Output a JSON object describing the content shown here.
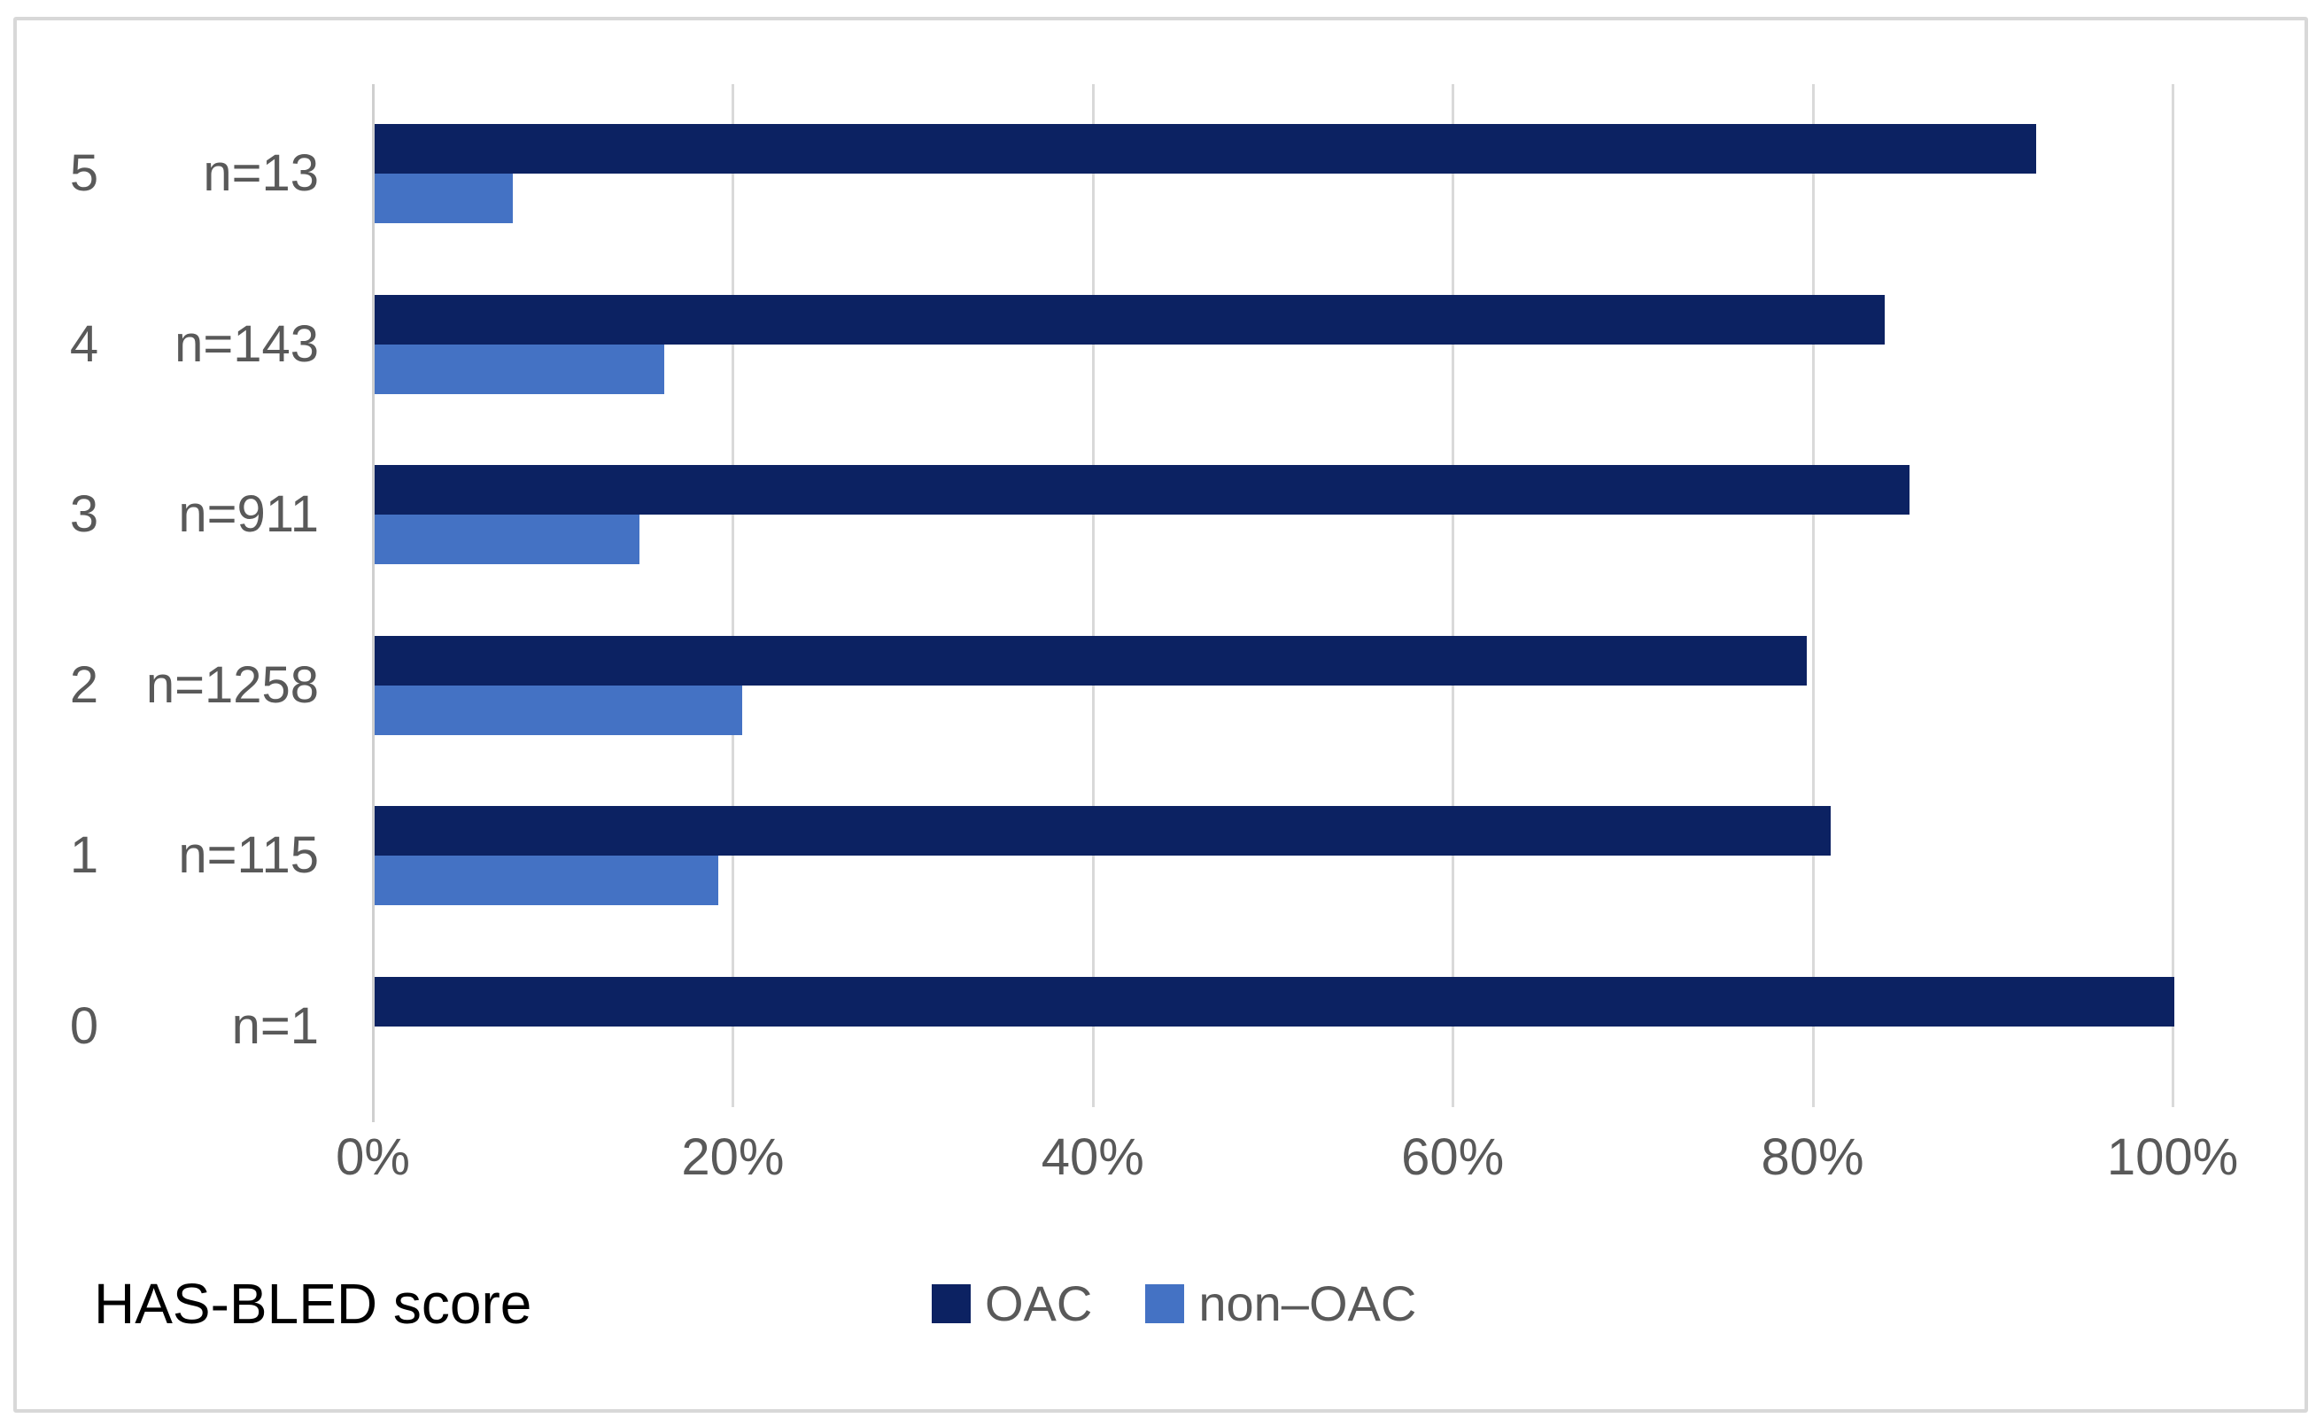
{
  "chart_data": {
    "type": "bar",
    "orientation": "horizontal",
    "axis_label": "HAS-BLED score",
    "categories": [
      {
        "score": "5",
        "n_label": "n=13"
      },
      {
        "score": "4",
        "n_label": "n=143"
      },
      {
        "score": "3",
        "n_label": "n=911"
      },
      {
        "score": "2",
        "n_label": "n=1258"
      },
      {
        "score": "1",
        "n_label": "n=115"
      },
      {
        "score": "0",
        "n_label": "n=1"
      }
    ],
    "series": [
      {
        "name": "OAC",
        "color": "#0c2262",
        "values": [
          92.3,
          83.9,
          85.3,
          79.6,
          80.9,
          100
        ]
      },
      {
        "name": "non–OAC",
        "color": "#4472c4",
        "values": [
          7.7,
          16.1,
          14.7,
          20.4,
          19.1,
          0
        ]
      }
    ],
    "x_ticks": [
      {
        "label": "0%",
        "value": 0
      },
      {
        "label": "20%",
        "value": 20
      },
      {
        "label": "40%",
        "value": 40
      },
      {
        "label": "60%",
        "value": 60
      },
      {
        "label": "80%",
        "value": 80
      },
      {
        "label": "100%",
        "value": 100
      }
    ],
    "xlim": [
      0,
      100
    ],
    "grid": true,
    "legend_position": "bottom-center",
    "colors": {
      "gridline": "#d9d9d9",
      "axis_line": "#cfcfcf",
      "label_gray": "#595959",
      "border_gray": "#d8d8d8",
      "title_black": "#000000"
    }
  }
}
